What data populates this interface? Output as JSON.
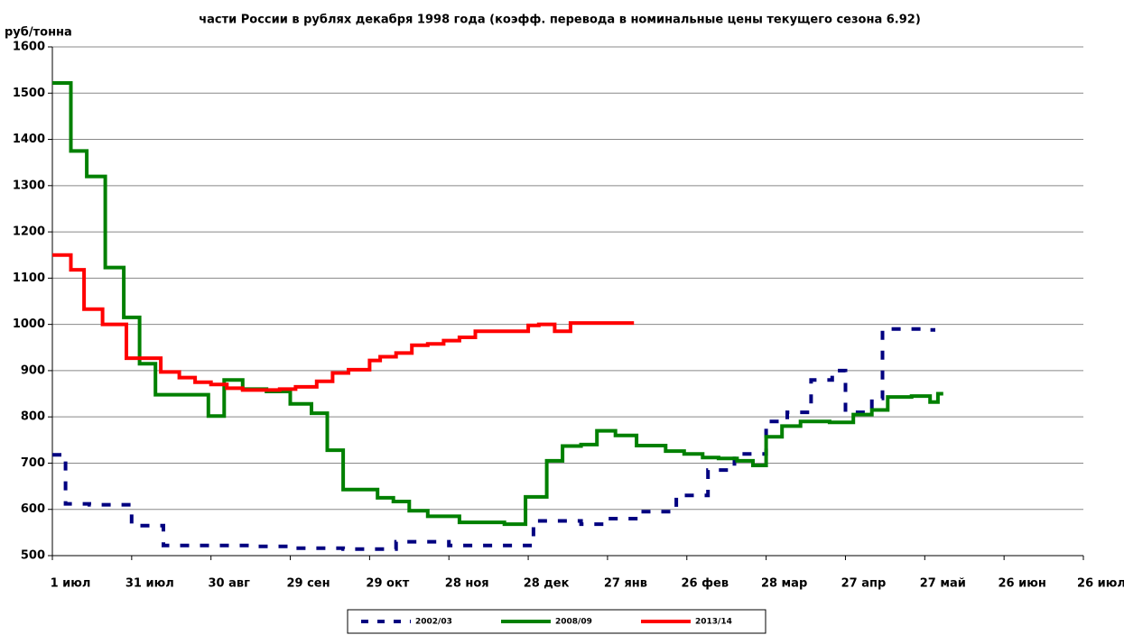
{
  "chart_data": {
    "type": "line",
    "title": "части России в рублях декабря 1998 года (коэфф. перевода в номинальные цены текущего сезона  6.92)",
    "y_label": "руб/тонна",
    "xlim": [
      0,
      360
    ],
    "xticks": [
      {
        "value": 0,
        "label": "1 июл"
      },
      {
        "value": 30,
        "label": "31 июл"
      },
      {
        "value": 60,
        "label": "30 авг"
      },
      {
        "value": 90,
        "label": "29 сен"
      },
      {
        "value": 120,
        "label": "29 окт"
      },
      {
        "value": 150,
        "label": "28 ноя"
      },
      {
        "value": 180,
        "label": "28 дек"
      },
      {
        "value": 210,
        "label": "27 янв"
      },
      {
        "value": 240,
        "label": "26 фев"
      },
      {
        "value": 270,
        "label": "28 мар"
      },
      {
        "value": 300,
        "label": "27 апр"
      },
      {
        "value": 330,
        "label": "27 май"
      },
      {
        "value": 360,
        "label": "26 июн"
      },
      {
        "value": 390,
        "label": "26 июл"
      }
    ],
    "ylim": [
      500,
      1600
    ],
    "yticks": [
      500,
      600,
      700,
      800,
      900,
      1000,
      1100,
      1200,
      1300,
      1400,
      1500,
      1600
    ],
    "grid": true,
    "legend": "bottom",
    "series": [
      {
        "name": "2002/03",
        "color": "#000080",
        "dashed": true,
        "x": [
          0,
          5,
          5,
          14,
          14,
          30,
          30,
          42,
          42,
          75,
          75,
          90,
          90,
          110,
          110,
          130,
          130,
          150,
          150,
          182,
          182,
          200,
          200,
          210,
          210,
          222,
          222,
          236,
          236,
          248,
          248,
          258,
          258,
          270,
          270,
          278,
          278,
          287,
          287,
          295,
          295,
          300,
          300,
          310,
          310,
          314,
          314,
          330,
          330,
          334
        ],
        "values": [
          718,
          718,
          612,
          612,
          610,
          610,
          565,
          565,
          522,
          522,
          520,
          520,
          516,
          516,
          514,
          514,
          530,
          530,
          522,
          522,
          575,
          575,
          568,
          568,
          580,
          580,
          595,
          595,
          630,
          630,
          685,
          685,
          720,
          720,
          790,
          790,
          810,
          810,
          880,
          880,
          900,
          900,
          810,
          810,
          840,
          840,
          990,
          990,
          988,
          988
        ]
      },
      {
        "name": "2008/09",
        "color": "#008000",
        "dashed": false,
        "x": [
          0,
          7,
          7,
          13,
          13,
          20,
          20,
          27,
          27,
          33,
          33,
          39,
          39,
          59,
          59,
          65,
          65,
          72,
          72,
          81,
          81,
          90,
          90,
          98,
          98,
          104,
          104,
          110,
          110,
          123,
          123,
          129,
          129,
          135,
          135,
          142,
          142,
          154,
          154,
          171,
          171,
          179,
          179,
          187,
          187,
          193,
          193,
          200,
          200,
          206,
          206,
          213,
          213,
          221,
          221,
          232,
          232,
          239,
          239,
          246,
          246,
          252,
          252,
          259,
          259,
          265,
          265,
          270,
          270,
          276,
          276,
          283,
          283,
          294,
          294,
          303,
          303,
          310,
          310,
          316,
          316,
          325,
          325,
          332,
          332,
          335,
          335,
          337
        ],
        "values": [
          1522,
          1522,
          1375,
          1375,
          1320,
          1320,
          1123,
          1123,
          1015,
          1015,
          915,
          915,
          848,
          848,
          802,
          802,
          880,
          880,
          860,
          860,
          855,
          855,
          828,
          828,
          808,
          808,
          728,
          728,
          643,
          643,
          625,
          625,
          617,
          617,
          597,
          597,
          585,
          585,
          572,
          572,
          568,
          568,
          627,
          627,
          705,
          705,
          737,
          737,
          740,
          740,
          770,
          770,
          760,
          760,
          738,
          738,
          726,
          726,
          720,
          720,
          712,
          712,
          710,
          710,
          705,
          705,
          695,
          695,
          757,
          757,
          780,
          780,
          790,
          790,
          788,
          788,
          805,
          805,
          815,
          815,
          843,
          843,
          845,
          845,
          832,
          832,
          850,
          850
        ]
      },
      {
        "name": "2013/14",
        "color": "#ff0000",
        "dashed": false,
        "x": [
          0,
          7,
          7,
          12,
          12,
          19,
          19,
          28,
          28,
          41,
          41,
          48,
          48,
          54,
          54,
          60,
          60,
          66,
          66,
          72,
          72,
          86,
          86,
          92,
          92,
          100,
          100,
          106,
          106,
          112,
          112,
          120,
          120,
          124,
          124,
          130,
          130,
          136,
          136,
          142,
          142,
          148,
          148,
          154,
          154,
          160,
          160,
          180,
          180,
          184,
          184,
          190,
          190,
          196,
          196,
          220
        ],
        "values": [
          1150,
          1150,
          1118,
          1118,
          1033,
          1033,
          1000,
          1000,
          927,
          927,
          897,
          897,
          885,
          885,
          875,
          875,
          870,
          870,
          862,
          862,
          858,
          858,
          860,
          860,
          865,
          865,
          877,
          877,
          895,
          895,
          902,
          902,
          922,
          922,
          930,
          930,
          938,
          938,
          955,
          955,
          958,
          958,
          965,
          965,
          972,
          972,
          985,
          985,
          998,
          998,
          1000,
          1000,
          985,
          985,
          1003,
          1003
        ]
      }
    ]
  }
}
